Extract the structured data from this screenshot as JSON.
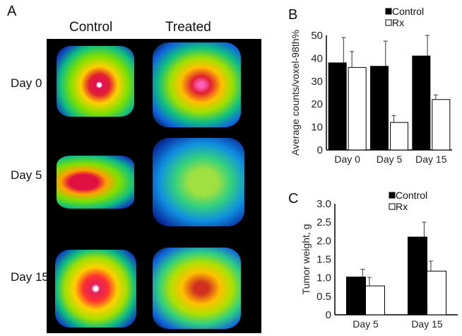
{
  "panelA": {
    "label": "A",
    "columns": [
      "Control",
      "Treated"
    ],
    "rows": [
      "Day 0",
      "Day 5",
      "Day 15"
    ]
  },
  "colors": {
    "control": "#000000",
    "rx": "#ffffff"
  },
  "chart_data": [
    {
      "panel": "B",
      "type": "bar",
      "categories": [
        "Day 0",
        "Day 5",
        "Day 15"
      ],
      "ylabel": "Average counts/voxel-98th%",
      "ylim": [
        0,
        50
      ],
      "yticks": [
        0,
        10,
        20,
        30,
        40,
        50
      ],
      "legend_position": "top-right",
      "grid": false,
      "series": [
        {
          "name": "Control",
          "values": [
            38,
            36.5,
            41
          ],
          "error_upper": [
            49,
            47.5,
            50
          ]
        },
        {
          "name": "Rx",
          "values": [
            36,
            12,
            22
          ],
          "error_upper": [
            43,
            15,
            24
          ]
        }
      ]
    },
    {
      "panel": "C",
      "type": "bar",
      "categories": [
        "Day 5",
        "Day 15"
      ],
      "ylabel": "Tumor weight, g",
      "ylim": [
        0,
        3.0
      ],
      "yticks": [
        "0",
        "0.5",
        "1.0",
        "1.5",
        "2.0",
        "2.5",
        "3.0"
      ],
      "legend_position": "top-right",
      "grid": false,
      "series": [
        {
          "name": "Control",
          "values": [
            1.02,
            2.1
          ],
          "error_upper": [
            1.23,
            2.5
          ]
        },
        {
          "name": "Rx",
          "values": [
            0.78,
            1.18
          ],
          "error_upper": [
            1.01,
            1.45
          ]
        }
      ]
    }
  ]
}
